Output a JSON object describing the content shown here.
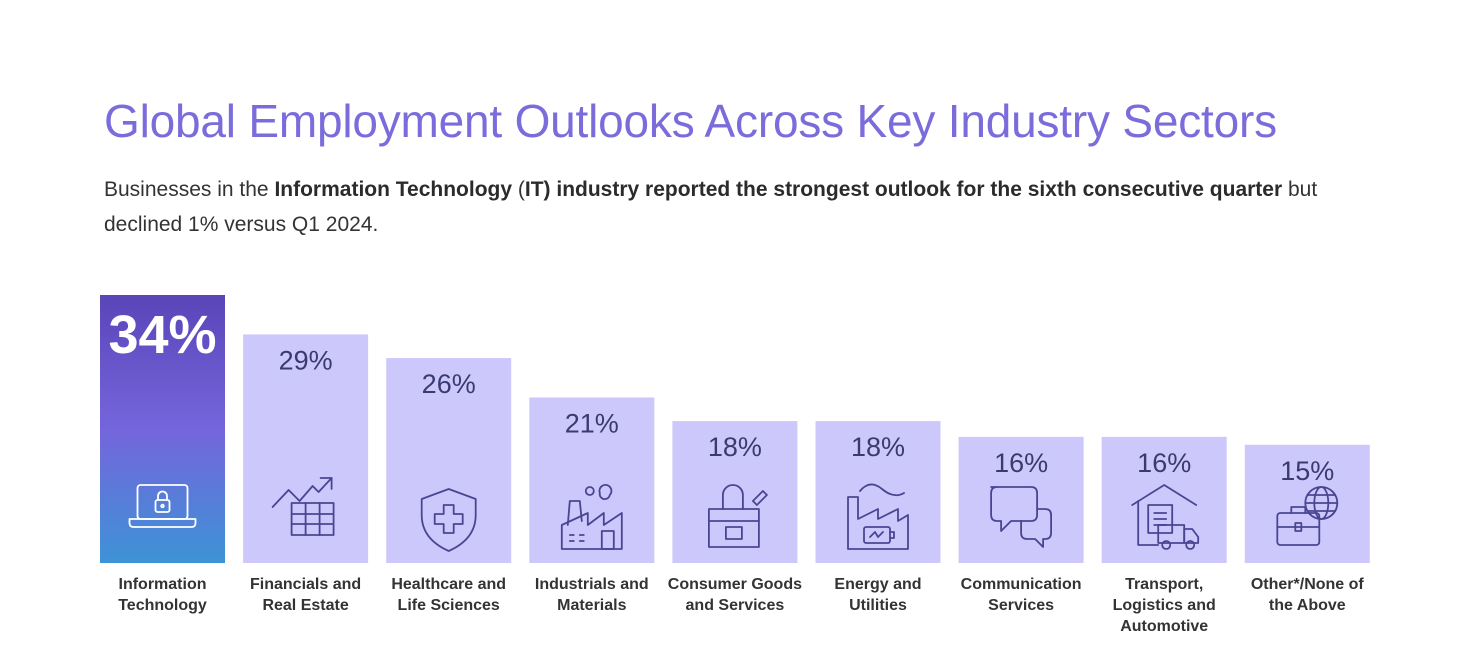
{
  "title": "Global Employment Outlooks Across Key Industry Sectors",
  "subtitle": {
    "parts": [
      {
        "text": "Businesses in the ",
        "bold": false
      },
      {
        "text": "Information Technology",
        "bold": true
      },
      {
        "text": " (",
        "bold": false
      },
      {
        "text": "IT) industry reported the strongest outlook for the sixth consecutive quarter",
        "bold": true
      },
      {
        "text": " but declined 1% versus Q1 2024.",
        "bold": false
      }
    ]
  },
  "colors": {
    "title": "#7b6cdc",
    "bar": "#cdc8fb",
    "highlight_top": "#5a45b8",
    "highlight_mid": "#7565dc",
    "highlight_bottom": "#3d93d6",
    "icon": "#4a4592"
  },
  "chart_data": {
    "type": "bar",
    "title": "",
    "xlabel": "",
    "ylabel": "",
    "ylim": [
      0,
      34
    ],
    "value_suffix": "%",
    "highlight_index": 0,
    "categories": [
      "Information Technology",
      "Financials and Real Estate",
      "Healthcare and Life Sciences",
      "Industrials and Materials",
      "Consumer Goods and Services",
      "Energy and Utilities",
      "Communication Services",
      "Transport, Logistics and Automotive",
      "Other*/None of the Above"
    ],
    "values": [
      34,
      29,
      26,
      21,
      18,
      18,
      16,
      16,
      15
    ],
    "data_labels": [
      "34%",
      "29%",
      "26%",
      "21%",
      "18%",
      "18%",
      "16%",
      "16%",
      "15%"
    ],
    "icons": [
      "laptop-lock-icon",
      "finance-chart-icon",
      "medical-shield-icon",
      "factory-icon",
      "shopping-bag-icon",
      "energy-plant-icon",
      "chat-bubbles-icon",
      "delivery-truck-icon",
      "globe-briefcase-icon"
    ]
  }
}
